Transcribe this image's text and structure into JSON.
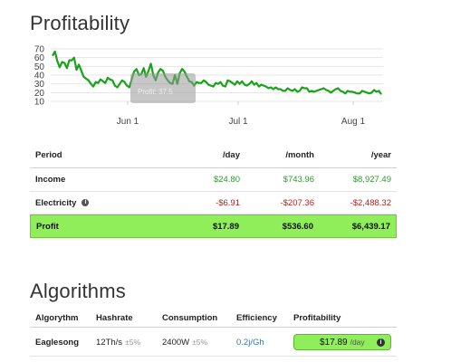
{
  "profitability": {
    "title": "Profitability",
    "chart_data": {
      "type": "line",
      "x_ticks": [
        "Jun 1",
        "Jul 1",
        "Aug 1"
      ],
      "y_ticks": [
        10,
        20,
        30,
        40,
        50,
        60,
        70
      ],
      "ylim": [
        10,
        70
      ],
      "grid": true,
      "series_color": "#1aa31a",
      "values": [
        62,
        67,
        56,
        49,
        55,
        54,
        48,
        57,
        57,
        60,
        46,
        52,
        45,
        38,
        36,
        34,
        30,
        27,
        32,
        31,
        35,
        33,
        31,
        37,
        35,
        34,
        28,
        26,
        30,
        34,
        32,
        28,
        26,
        35,
        44,
        47,
        40,
        41,
        48,
        38,
        45,
        53,
        40,
        34,
        43,
        47,
        45,
        38,
        34,
        31,
        30,
        40,
        30,
        42,
        47,
        44,
        38,
        33,
        32,
        28,
        32,
        31,
        31,
        34,
        32,
        29,
        28,
        27,
        31,
        30,
        32,
        28,
        27,
        34,
        33,
        31,
        29,
        33,
        30,
        33,
        29,
        28,
        30,
        33,
        29,
        31,
        27,
        29,
        28,
        27,
        25,
        26,
        24,
        26,
        24,
        24,
        22,
        22,
        25,
        23,
        22,
        24,
        21,
        22,
        26,
        25,
        25,
        21,
        22,
        21,
        22,
        23,
        24,
        25,
        23,
        22,
        20,
        22,
        24,
        25,
        22,
        21,
        19,
        22,
        21,
        21,
        20,
        19,
        19,
        22,
        21,
        20,
        19,
        20,
        23,
        21,
        22,
        18
      ],
      "tooltip_text": "Profit: 37.5"
    },
    "table": {
      "headers": {
        "period": "Period",
        "day": "/day",
        "month": "/month",
        "year": "/year"
      },
      "income": {
        "label": "Income",
        "day": "$24.80",
        "month": "$743.96",
        "year": "$8,927.49"
      },
      "electricity": {
        "label": "Electricity",
        "day": "-$6.91",
        "month": "-$207.36",
        "year": "-$2,488.32"
      },
      "profit": {
        "label": "Profit",
        "day": "$17.89",
        "month": "$536.60",
        "year": "$6,439.17"
      }
    }
  },
  "algorithms": {
    "title": "Algorithms",
    "headers": {
      "algorithm": "Algorythm",
      "hashrate": "Hashrate",
      "consumption": "Consumption",
      "efficiency": "Efficiency",
      "profitability": "Profitability"
    },
    "rows": [
      {
        "name": "Eaglesong",
        "hashrate": "12Th/s",
        "hashrate_tol": "±5%",
        "consumption": "2400W",
        "consumption_tol": "±5%",
        "efficiency": "0.2j/Gh",
        "profit_value": "$17.89",
        "profit_unit": "/day"
      }
    ]
  },
  "colors": {
    "positive": "#2e9a2e",
    "negative": "#b32020",
    "profit_bg": "#90ee5a",
    "link": "#2a7ab8"
  },
  "icons": {
    "info": "info-icon"
  }
}
